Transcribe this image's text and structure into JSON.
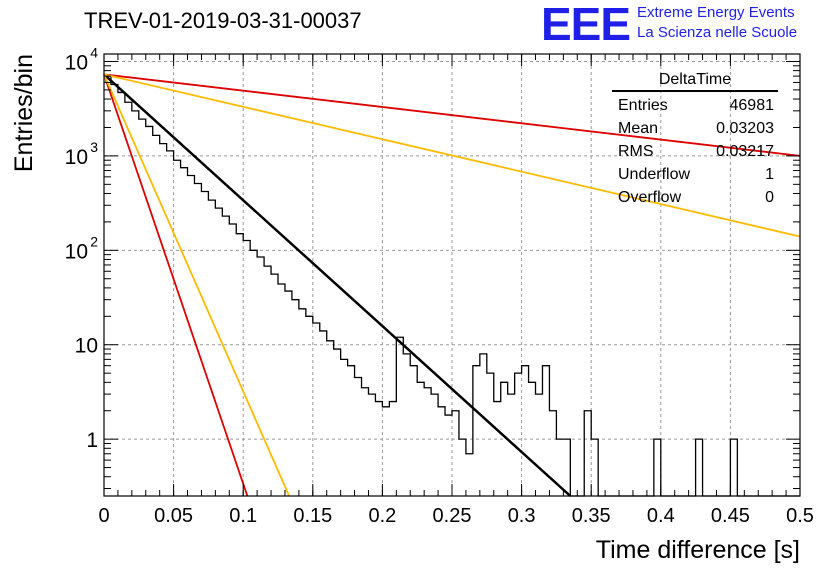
{
  "header": {
    "title": "TREV-01-2019-03-31-00037",
    "logo_text": "EEE",
    "logo_line1": "Extreme Energy Events",
    "logo_line2": "La Scienza nelle Scuole",
    "logo_color": "#1f1fe6"
  },
  "stats_box": {
    "title": "DeltaTime",
    "rows": [
      {
        "label": "Entries",
        "value": "46981"
      },
      {
        "label": "Mean",
        "value": "0.03203"
      },
      {
        "label": "RMS",
        "value": "0.03217"
      },
      {
        "label": "Underflow",
        "value": "1"
      },
      {
        "label": "Overflow",
        "value": "0"
      }
    ]
  },
  "chart_data": {
    "type": "line",
    "xlabel": "Time difference [s]",
    "ylabel": "Entries/bin",
    "xlim": [
      0,
      0.5
    ],
    "ylim": [
      0.25,
      12000
    ],
    "y_scale": "log",
    "grid": true,
    "x_ticks": [
      "0",
      "0.05",
      "0.1",
      "0.15",
      "0.2",
      "0.25",
      "0.3",
      "0.35",
      "0.4",
      "0.45",
      "0.5"
    ],
    "y_ticks": [
      {
        "value": 1,
        "label": "1"
      },
      {
        "value": 10,
        "label": "10"
      },
      {
        "value": 100,
        "label": "10",
        "exp": "2"
      },
      {
        "value": 1000,
        "label": "10",
        "exp": "3"
      },
      {
        "value": 10000,
        "label": "10",
        "exp": "4"
      }
    ],
    "histogram": {
      "bin_width": 0.005,
      "values": [
        7000,
        5700,
        4700,
        3700,
        3000,
        2450,
        2050,
        1650,
        1350,
        1130,
        900,
        750,
        620,
        510,
        420,
        340,
        280,
        230,
        190,
        150,
        127,
        100,
        85,
        68,
        56,
        44,
        37,
        30,
        24,
        20,
        17,
        14,
        11,
        9,
        7,
        6,
        4.5,
        3.5,
        3,
        2.5,
        2.2,
        2.5,
        12,
        8,
        6,
        4,
        3.5,
        3,
        2.2,
        1.8,
        2,
        1,
        0.7,
        6,
        8,
        5,
        2.5,
        4,
        3,
        5,
        6,
        4,
        3,
        6,
        2,
        1,
        1,
        0,
        0,
        2,
        1,
        0,
        0,
        0,
        0,
        0,
        0,
        0,
        0,
        1,
        0,
        0,
        0,
        0,
        0,
        1,
        0,
        0,
        0,
        0,
        1,
        0,
        0,
        0,
        0,
        0,
        0,
        0,
        0,
        0
      ],
      "color": "#000000"
    },
    "series": [
      {
        "points": [
          [
            0,
            7300
          ],
          [
            0.335,
            0.25
          ]
        ],
        "color": "#000000",
        "width": 2.5
      },
      {
        "points": [
          [
            0,
            7300
          ],
          [
            0.103,
            0.25
          ]
        ],
        "color": "#dd0000",
        "width": 1.8
      },
      {
        "points": [
          [
            0,
            7300
          ],
          [
            0.133,
            0.25
          ]
        ],
        "color": "#ffbb00",
        "width": 1.8
      },
      {
        "points": [
          [
            0,
            7300
          ],
          [
            0.5,
            1000
          ]
        ],
        "color": "#dd0000",
        "width": 1.8
      },
      {
        "points": [
          [
            0,
            7300
          ],
          [
            0.5,
            140
          ]
        ],
        "color": "#ffbb00",
        "width": 1.8
      }
    ]
  }
}
